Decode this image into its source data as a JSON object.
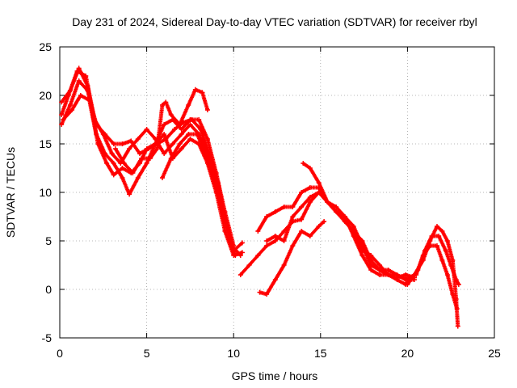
{
  "chart_data": {
    "type": "scatter",
    "title": "Day 231 of 2024, Sidereal Day-to-day VTEC variation (SDTVAR) for receiver rbyl",
    "xlabel": "GPS time / hours",
    "ylabel": "SDTVAR / TECUs",
    "xlim": [
      0,
      25
    ],
    "ylim": [
      -5,
      25
    ],
    "xticks": [
      0,
      5,
      10,
      15,
      20,
      25
    ],
    "yticks": [
      -5,
      0,
      5,
      10,
      15,
      20,
      25
    ],
    "grid": true,
    "legend": "none",
    "marker": "+",
    "series_color": "#ff0000",
    "series": [
      {
        "name": "track-1",
        "points": [
          [
            0.1,
            18.0
          ],
          [
            0.5,
            20.0
          ],
          [
            1.0,
            22.5
          ],
          [
            1.5,
            22.0
          ],
          [
            2.0,
            17.5
          ],
          [
            2.5,
            16.0
          ],
          [
            3.0,
            14.0
          ],
          [
            3.5,
            13.0
          ],
          [
            4.0,
            14.5
          ],
          [
            4.5,
            15.5
          ],
          [
            5.0,
            16.5
          ],
          [
            5.5,
            15.5
          ],
          [
            6.0,
            14.0
          ],
          [
            6.5,
            15.0
          ],
          [
            7.0,
            16.0
          ],
          [
            7.5,
            17.0
          ],
          [
            8.0,
            16.0
          ],
          [
            8.5,
            14.0
          ],
          [
            9.0,
            11.0
          ],
          [
            9.5,
            7.0
          ],
          [
            10.0,
            4.0
          ],
          [
            10.5,
            4.8
          ]
        ]
      },
      {
        "name": "track-2",
        "points": [
          [
            0.1,
            17.0
          ],
          [
            0.6,
            19.0
          ],
          [
            1.1,
            21.5
          ],
          [
            1.6,
            20.5
          ],
          [
            2.1,
            17.0
          ],
          [
            2.6,
            16.0
          ],
          [
            3.1,
            15.0
          ],
          [
            3.6,
            15.0
          ],
          [
            4.1,
            15.3
          ],
          [
            4.6,
            14.0
          ],
          [
            5.1,
            14.5
          ],
          [
            5.6,
            15.0
          ],
          [
            6.1,
            15.5
          ],
          [
            6.6,
            16.5
          ],
          [
            7.1,
            17.2
          ],
          [
            7.6,
            17.5
          ],
          [
            8.1,
            16.5
          ],
          [
            8.6,
            14.0
          ],
          [
            9.1,
            11.0
          ],
          [
            9.6,
            6.5
          ],
          [
            10.1,
            3.5
          ]
        ]
      },
      {
        "name": "track-3",
        "points": [
          [
            0.1,
            19.3
          ],
          [
            0.6,
            20.5
          ],
          [
            1.1,
            22.8
          ],
          [
            1.6,
            21.0
          ],
          [
            2.1,
            16.0
          ],
          [
            2.6,
            14.0
          ],
          [
            3.1,
            13.0
          ],
          [
            3.6,
            11.5
          ],
          [
            4.0,
            9.8
          ],
          [
            4.5,
            11.5
          ],
          [
            5.0,
            13.0
          ],
          [
            5.5,
            15.0
          ],
          [
            6.0,
            17.0
          ],
          [
            6.5,
            17.5
          ],
          [
            7.0,
            16.5
          ],
          [
            7.5,
            17.5
          ],
          [
            8.0,
            17.5
          ],
          [
            8.5,
            15.5
          ],
          [
            9.0,
            12.0
          ],
          [
            9.5,
            8.0
          ],
          [
            10.0,
            4.5
          ]
        ]
      },
      {
        "name": "track-4",
        "points": [
          [
            0.2,
            17.5
          ],
          [
            0.7,
            18.5
          ],
          [
            1.2,
            20.0
          ],
          [
            1.7,
            19.5
          ],
          [
            2.2,
            15.0
          ],
          [
            2.7,
            13.0
          ],
          [
            3.1,
            11.8
          ],
          [
            3.6,
            12.5
          ],
          [
            4.1,
            12.0
          ],
          [
            4.6,
            13.0
          ],
          [
            5.0,
            14.5
          ],
          [
            5.5,
            15.0
          ],
          [
            6.0,
            16.0
          ],
          [
            6.5,
            13.5
          ],
          [
            7.0,
            14.5
          ],
          [
            7.5,
            15.5
          ],
          [
            8.0,
            15.0
          ],
          [
            8.5,
            13.0
          ],
          [
            9.0,
            10.0
          ],
          [
            9.5,
            6.0
          ],
          [
            10.0,
            3.5
          ],
          [
            10.5,
            3.8
          ]
        ]
      },
      {
        "name": "track-5",
        "points": [
          [
            3.2,
            14.5
          ],
          [
            3.7,
            13.0
          ],
          [
            4.2,
            12.0
          ],
          [
            4.7,
            13.5
          ],
          [
            5.2,
            13.5
          ],
          [
            5.6,
            14.5
          ],
          [
            5.9,
            19.0
          ],
          [
            6.1,
            19.3
          ],
          [
            6.4,
            18.0
          ],
          [
            6.9,
            17.0
          ],
          [
            7.4,
            19.0
          ],
          [
            7.8,
            20.6
          ],
          [
            8.2,
            20.3
          ],
          [
            8.5,
            18.5
          ]
        ]
      },
      {
        "name": "track-6",
        "points": [
          [
            5.9,
            11.5
          ],
          [
            6.4,
            13.5
          ],
          [
            6.9,
            15.0
          ],
          [
            7.4,
            16.0
          ],
          [
            7.9,
            16.0
          ],
          [
            8.4,
            14.0
          ],
          [
            8.9,
            11.0
          ],
          [
            9.4,
            8.0
          ],
          [
            9.9,
            4.5
          ],
          [
            10.4,
            3.5
          ]
        ]
      },
      {
        "name": "track-7",
        "points": [
          [
            10.4,
            1.5
          ],
          [
            10.9,
            2.5
          ],
          [
            11.4,
            3.5
          ],
          [
            11.9,
            4.5
          ],
          [
            12.4,
            5.0
          ],
          [
            12.9,
            6.0
          ],
          [
            13.4,
            7.0
          ],
          [
            13.9,
            7.2
          ],
          [
            14.4,
            9.0
          ],
          [
            14.9,
            10.0
          ],
          [
            15.4,
            9.0
          ],
          [
            15.9,
            8.0
          ],
          [
            16.4,
            7.0
          ],
          [
            16.9,
            6.0
          ],
          [
            17.4,
            4.0
          ],
          [
            17.9,
            3.5
          ],
          [
            18.4,
            2.5
          ],
          [
            18.9,
            1.5
          ],
          [
            19.4,
            1.2
          ],
          [
            19.9,
            1.5
          ],
          [
            20.4,
            1.2
          ]
        ]
      },
      {
        "name": "track-8",
        "points": [
          [
            11.4,
            6.0
          ],
          [
            11.9,
            7.5
          ],
          [
            12.4,
            8.0
          ],
          [
            12.9,
            8.5
          ],
          [
            13.4,
            8.5
          ],
          [
            13.9,
            10.0
          ],
          [
            14.4,
            10.5
          ],
          [
            14.9,
            10.5
          ],
          [
            15.4,
            9.0
          ],
          [
            15.9,
            8.5
          ],
          [
            16.4,
            7.5
          ],
          [
            16.9,
            6.5
          ],
          [
            17.4,
            4.5
          ],
          [
            17.9,
            2.5
          ],
          [
            18.4,
            2.0
          ],
          [
            18.9,
            2.0
          ],
          [
            19.4,
            1.5
          ],
          [
            19.9,
            1.0
          ],
          [
            20.4,
            1.0
          ]
        ]
      },
      {
        "name": "track-9",
        "points": [
          [
            11.5,
            -0.3
          ],
          [
            11.9,
            -0.5
          ],
          [
            12.4,
            1.0
          ],
          [
            12.9,
            2.5
          ],
          [
            13.4,
            4.5
          ],
          [
            13.9,
            6.0
          ],
          [
            14.4,
            5.5
          ],
          [
            14.9,
            6.5
          ],
          [
            15.2,
            7.0
          ]
        ]
      },
      {
        "name": "track-10",
        "points": [
          [
            11.9,
            5.0
          ],
          [
            12.4,
            5.5
          ],
          [
            12.9,
            5.0
          ],
          [
            13.4,
            7.5
          ],
          [
            13.9,
            8.5
          ],
          [
            14.4,
            9.5
          ],
          [
            14.9,
            10.0
          ],
          [
            15.4,
            9.0
          ],
          [
            15.9,
            8.0
          ],
          [
            16.4,
            7.5
          ],
          [
            16.9,
            5.5
          ],
          [
            17.4,
            3.5
          ],
          [
            17.9,
            2.0
          ],
          [
            18.4,
            1.5
          ],
          [
            18.9,
            1.5
          ],
          [
            19.4,
            1.0
          ],
          [
            19.9,
            0.5
          ],
          [
            20.4,
            1.5
          ]
        ]
      },
      {
        "name": "track-11",
        "points": [
          [
            14.0,
            13.0
          ],
          [
            14.4,
            12.5
          ],
          [
            14.9,
            11.0
          ],
          [
            15.4,
            9.0
          ],
          [
            15.9,
            8.0
          ],
          [
            16.4,
            7.0
          ],
          [
            16.9,
            6.0
          ],
          [
            17.4,
            5.0
          ],
          [
            17.9,
            3.0
          ],
          [
            18.4,
            2.0
          ],
          [
            18.9,
            1.5
          ],
          [
            19.4,
            1.5
          ],
          [
            19.9,
            1.0
          ],
          [
            20.4,
            1.5
          ]
        ]
      },
      {
        "name": "track-12",
        "points": [
          [
            20.0,
            0.5
          ],
          [
            20.4,
            1.5
          ],
          [
            20.9,
            3.0
          ],
          [
            21.3,
            5.0
          ],
          [
            21.7,
            6.5
          ],
          [
            22.0,
            6.0
          ],
          [
            22.3,
            5.0
          ],
          [
            22.6,
            3.0
          ],
          [
            22.8,
            -1.0
          ],
          [
            22.9,
            -3.8
          ]
        ]
      },
      {
        "name": "track-13",
        "points": [
          [
            20.2,
            1.0
          ],
          [
            20.6,
            2.0
          ],
          [
            21.0,
            4.0
          ],
          [
            21.4,
            5.5
          ],
          [
            21.8,
            5.5
          ],
          [
            22.2,
            4.0
          ],
          [
            22.5,
            2.5
          ],
          [
            22.8,
            1.0
          ],
          [
            22.95,
            0.5
          ]
        ]
      },
      {
        "name": "track-14",
        "points": [
          [
            20.5,
            1.5
          ],
          [
            20.9,
            3.5
          ],
          [
            21.3,
            4.5
          ],
          [
            21.7,
            4.5
          ],
          [
            22.0,
            3.0
          ],
          [
            22.3,
            1.5
          ],
          [
            22.6,
            -0.5
          ],
          [
            22.85,
            -2.0
          ]
        ]
      }
    ]
  }
}
